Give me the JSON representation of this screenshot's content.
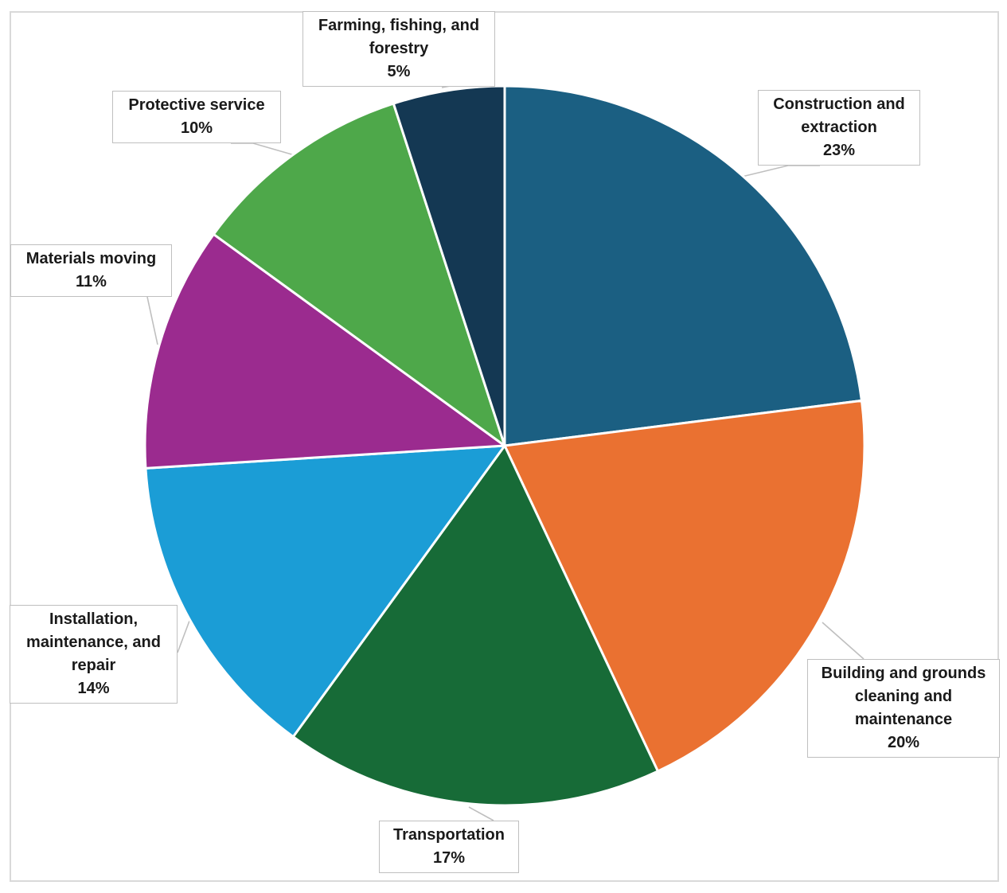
{
  "chart_data": {
    "type": "pie",
    "title": "",
    "start_angle_deg": 0,
    "direction": "clockwise",
    "colors": [
      "#1b5f82",
      "#ea7131",
      "#176b37",
      "#1b9dd6",
      "#9b2b8f",
      "#4ea84a",
      "#143853"
    ],
    "slices": [
      {
        "name": "Construction and extraction",
        "value": 23,
        "label_lines": [
          "Construction and",
          "extraction"
        ],
        "pct_label": "23%"
      },
      {
        "name": "Building and grounds cleaning and maintenance",
        "value": 20,
        "label_lines": [
          "Building and grounds",
          "cleaning and",
          "maintenance"
        ],
        "pct_label": "20%"
      },
      {
        "name": "Transportation",
        "value": 17,
        "label_lines": [
          "Transportation"
        ],
        "pct_label": "17%"
      },
      {
        "name": "Installation, maintenance, and repair",
        "value": 14,
        "label_lines": [
          "Installation,",
          "maintenance, and",
          "repair"
        ],
        "pct_label": "14%"
      },
      {
        "name": "Materials moving",
        "value": 11,
        "label_lines": [
          "Materials moving"
        ],
        "pct_label": "11%"
      },
      {
        "name": "Protective service",
        "value": 10,
        "label_lines": [
          "Protective service"
        ],
        "pct_label": "10%"
      },
      {
        "name": "Farming, fishing, and forestry",
        "value": 5,
        "label_lines": [
          "Farming, fishing, and",
          "forestry"
        ],
        "pct_label": "5%"
      }
    ]
  }
}
